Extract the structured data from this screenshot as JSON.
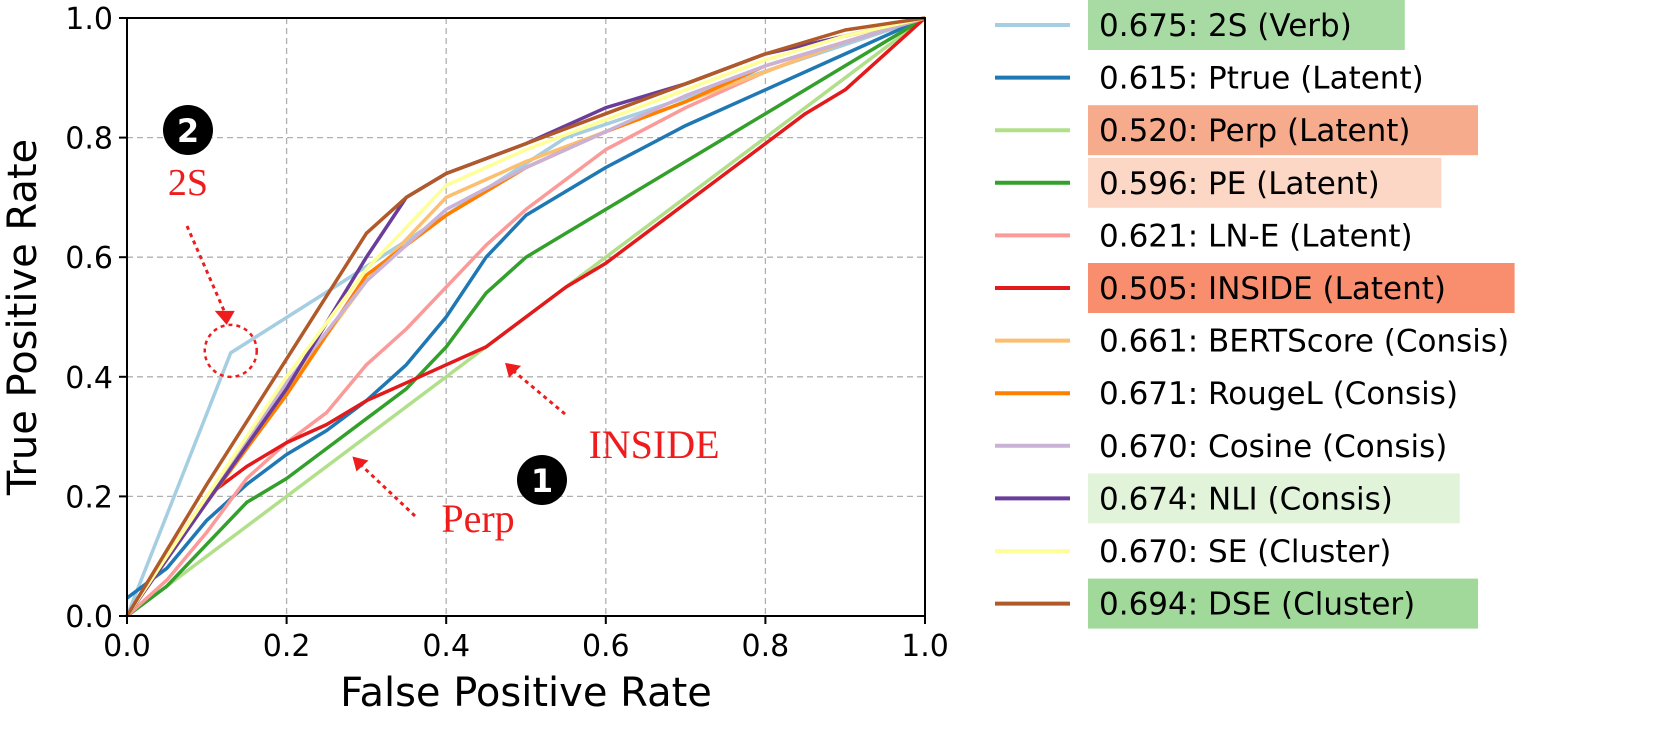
{
  "chart_data": {
    "type": "line",
    "title": "",
    "xlabel": "False Positive Rate",
    "ylabel": "True Positive Rate",
    "xlim": [
      0.0,
      1.0
    ],
    "ylim": [
      0.0,
      1.0
    ],
    "xticks": [
      "0.0",
      "0.2",
      "0.4",
      "0.6",
      "0.8",
      "1.0"
    ],
    "yticks": [
      "0.0",
      "0.2",
      "0.4",
      "0.6",
      "0.8",
      "1.0"
    ],
    "grid": true,
    "legend_position": "outside-right",
    "series": [
      {
        "name": "0.675: 2S (Verb)",
        "color": "#a6cee3",
        "highlight": "#a8dba3",
        "points": [
          [
            0,
            0
          ],
          [
            0.13,
            0.44
          ],
          [
            0.26,
            0.55
          ],
          [
            0.55,
            0.8
          ],
          [
            1,
            1
          ]
        ]
      },
      {
        "name": "0.615: Ptrue (Latent)",
        "color": "#1f78b4",
        "highlight": null,
        "points": [
          [
            0,
            0.03
          ],
          [
            0.05,
            0.08
          ],
          [
            0.1,
            0.16
          ],
          [
            0.15,
            0.22
          ],
          [
            0.2,
            0.27
          ],
          [
            0.25,
            0.31
          ],
          [
            0.3,
            0.36
          ],
          [
            0.35,
            0.42
          ],
          [
            0.4,
            0.5
          ],
          [
            0.45,
            0.6
          ],
          [
            0.5,
            0.67
          ],
          [
            0.55,
            0.71
          ],
          [
            0.6,
            0.75
          ],
          [
            0.7,
            0.82
          ],
          [
            0.8,
            0.88
          ],
          [
            0.9,
            0.94
          ],
          [
            1,
            1
          ]
        ]
      },
      {
        "name": "0.520: Perp (Latent)",
        "color": "#b2df8a",
        "highlight": "#f5ab8c",
        "points": [
          [
            0,
            0
          ],
          [
            0.87,
            0.87
          ],
          [
            1,
            1
          ]
        ]
      },
      {
        "name": "0.596: PE (Latent)",
        "color": "#33a02c",
        "highlight": "#fcd7c5",
        "points": [
          [
            0,
            0
          ],
          [
            0.05,
            0.05
          ],
          [
            0.1,
            0.12
          ],
          [
            0.15,
            0.19
          ],
          [
            0.2,
            0.23
          ],
          [
            0.25,
            0.28
          ],
          [
            0.3,
            0.33
          ],
          [
            0.35,
            0.38
          ],
          [
            0.4,
            0.45
          ],
          [
            0.45,
            0.54
          ],
          [
            0.5,
            0.6
          ],
          [
            0.55,
            0.64
          ],
          [
            0.6,
            0.68
          ],
          [
            0.7,
            0.76
          ],
          [
            0.8,
            0.84
          ],
          [
            0.9,
            0.92
          ],
          [
            1,
            1
          ]
        ]
      },
      {
        "name": "0.621: LN-E (Latent)",
        "color": "#fb9a99",
        "highlight": null,
        "points": [
          [
            0,
            0
          ],
          [
            0.05,
            0.06
          ],
          [
            0.1,
            0.14
          ],
          [
            0.15,
            0.23
          ],
          [
            0.2,
            0.29
          ],
          [
            0.25,
            0.34
          ],
          [
            0.3,
            0.42
          ],
          [
            0.35,
            0.48
          ],
          [
            0.4,
            0.55
          ],
          [
            0.45,
            0.62
          ],
          [
            0.5,
            0.68
          ],
          [
            0.55,
            0.73
          ],
          [
            0.6,
            0.78
          ],
          [
            0.7,
            0.85
          ],
          [
            0.8,
            0.91
          ],
          [
            0.9,
            0.96
          ],
          [
            1,
            1
          ]
        ]
      },
      {
        "name": "0.505: INSIDE (Latent)",
        "color": "#e31a1c",
        "highlight": "#f88e6e",
        "points": [
          [
            0,
            0
          ],
          [
            0.05,
            0.1
          ],
          [
            0.1,
            0.2
          ],
          [
            0.15,
            0.25
          ],
          [
            0.2,
            0.29
          ],
          [
            0.25,
            0.32
          ],
          [
            0.3,
            0.36
          ],
          [
            0.35,
            0.39
          ],
          [
            0.4,
            0.42
          ],
          [
            0.45,
            0.45
          ],
          [
            0.5,
            0.5
          ],
          [
            0.55,
            0.55
          ],
          [
            0.6,
            0.59
          ],
          [
            0.65,
            0.64
          ],
          [
            0.7,
            0.69
          ],
          [
            0.75,
            0.74
          ],
          [
            0.8,
            0.79
          ],
          [
            0.85,
            0.84
          ],
          [
            0.9,
            0.88
          ],
          [
            0.95,
            0.94
          ],
          [
            1,
            1
          ]
        ]
      },
      {
        "name": "0.661: BERTScore (Consis)",
        "color": "#fdbf6f",
        "highlight": null,
        "points": [
          [
            0,
            0
          ],
          [
            0.1,
            0.2
          ],
          [
            0.2,
            0.38
          ],
          [
            0.3,
            0.56
          ],
          [
            0.35,
            0.63
          ],
          [
            0.4,
            0.7
          ],
          [
            0.5,
            0.76
          ],
          [
            0.6,
            0.81
          ],
          [
            0.7,
            0.86
          ],
          [
            0.8,
            0.91
          ],
          [
            0.9,
            0.96
          ],
          [
            1,
            1
          ]
        ]
      },
      {
        "name": "0.671: RougeL (Consis)",
        "color": "#ff7f00",
        "highlight": null,
        "points": [
          [
            0,
            0
          ],
          [
            0.1,
            0.19
          ],
          [
            0.2,
            0.37
          ],
          [
            0.3,
            0.57
          ],
          [
            0.35,
            0.62
          ],
          [
            0.4,
            0.67
          ],
          [
            0.5,
            0.75
          ],
          [
            0.6,
            0.81
          ],
          [
            0.7,
            0.86
          ],
          [
            0.8,
            0.92
          ],
          [
            0.9,
            0.96
          ],
          [
            1,
            1
          ]
        ]
      },
      {
        "name": "0.670: Cosine (Consis)",
        "color": "#cab2d6",
        "highlight": null,
        "points": [
          [
            0,
            0
          ],
          [
            0.1,
            0.2
          ],
          [
            0.2,
            0.39
          ],
          [
            0.3,
            0.56
          ],
          [
            0.35,
            0.62
          ],
          [
            0.4,
            0.68
          ],
          [
            0.5,
            0.75
          ],
          [
            0.6,
            0.81
          ],
          [
            0.7,
            0.87
          ],
          [
            0.8,
            0.92
          ],
          [
            0.9,
            0.96
          ],
          [
            1,
            1
          ]
        ]
      },
      {
        "name": "0.674: NLI (Consis)",
        "color": "#6a3d9a",
        "highlight": "#e1f3d9",
        "points": [
          [
            0,
            0
          ],
          [
            0.1,
            0.19
          ],
          [
            0.2,
            0.38
          ],
          [
            0.3,
            0.6
          ],
          [
            0.35,
            0.7
          ],
          [
            0.4,
            0.74
          ],
          [
            0.5,
            0.79
          ],
          [
            0.6,
            0.85
          ],
          [
            0.7,
            0.89
          ],
          [
            0.8,
            0.94
          ],
          [
            0.9,
            0.97
          ],
          [
            1,
            1
          ]
        ]
      },
      {
        "name": "0.670: SE (Cluster)",
        "color": "#ffff99",
        "highlight": null,
        "points": [
          [
            0,
            0
          ],
          [
            0.1,
            0.2
          ],
          [
            0.2,
            0.4
          ],
          [
            0.3,
            0.58
          ],
          [
            0.35,
            0.65
          ],
          [
            0.4,
            0.72
          ],
          [
            0.5,
            0.78
          ],
          [
            0.6,
            0.83
          ],
          [
            0.7,
            0.88
          ],
          [
            0.8,
            0.93
          ],
          [
            0.9,
            0.97
          ],
          [
            1,
            1
          ]
        ]
      },
      {
        "name": "0.694: DSE (Cluster)",
        "color": "#b15928",
        "highlight": "#a1d99b",
        "points": [
          [
            0,
            0
          ],
          [
            0.1,
            0.22
          ],
          [
            0.2,
            0.43
          ],
          [
            0.3,
            0.64
          ],
          [
            0.35,
            0.7
          ],
          [
            0.4,
            0.74
          ],
          [
            0.5,
            0.79
          ],
          [
            0.6,
            0.84
          ],
          [
            0.7,
            0.89
          ],
          [
            0.8,
            0.94
          ],
          [
            0.9,
            0.98
          ],
          [
            1,
            1
          ]
        ]
      }
    ],
    "annotations": [
      {
        "marker": "2",
        "label": "2S",
        "target": [
          0.13,
          0.44
        ]
      },
      {
        "marker": "1",
        "label": "INSIDE",
        "target": [
          0.47,
          0.44
        ]
      },
      {
        "label": "Perp",
        "target": [
          0.28,
          0.27
        ]
      }
    ],
    "annotation_color": "#ee1c1c"
  }
}
